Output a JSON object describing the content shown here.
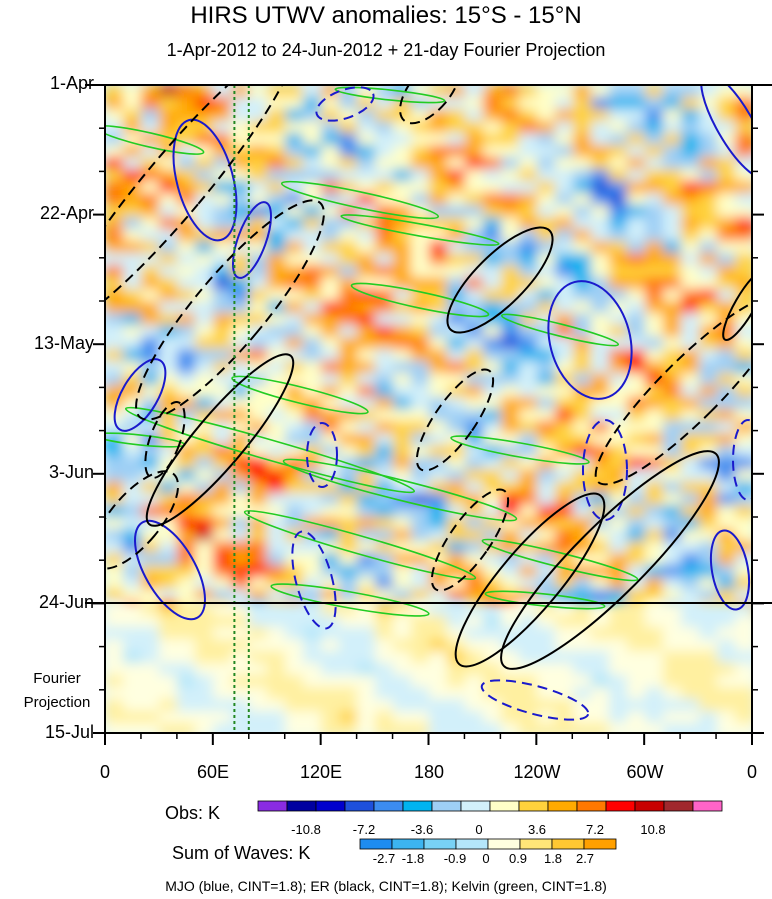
{
  "header": {
    "title": "HIRS UTWV anomalies: 15°S - 15°N",
    "subtitle": "1-Apr-2012 to 24-Jun-2012 + 21-day Fourier Projection"
  },
  "projection_label": [
    "Fourier",
    "Projection"
  ],
  "footer": "MJO (blue, CINT=1.8); ER (black, CINT=1.8); Kelvin (green, CINT=1.8)",
  "colors": {
    "mjo": "#1a1acc",
    "er": "#000000",
    "kelvin": "#22cc22",
    "reference_line": "#228822"
  },
  "chart_data": {
    "type": "heatmap",
    "title": "HIRS UTWV anomalies: 15°S - 15°N",
    "subtitle": "1-Apr-2012 to 24-Jun-2012 + 21-day Fourier Projection",
    "x_axis": {
      "tick_labels": [
        "0",
        "60E",
        "120E",
        "180",
        "120W",
        "60W",
        "0"
      ],
      "range_deg_east": [
        0,
        360
      ]
    },
    "y_axis": {
      "tick_labels": [
        "1-Apr",
        "22-Apr",
        "13-May",
        "3-Jun",
        "24-Jun",
        "15-Jul"
      ],
      "range": [
        "1-Apr-2012",
        "15-Jul-2012"
      ],
      "observation_end": "24-Jun",
      "projection_days": 21
    },
    "reference_longitudes_deg_east": [
      72,
      80
    ],
    "colorbars": [
      {
        "title": "Obs: K",
        "levels": [
          "-10.8",
          "-7.2",
          "-3.6",
          "0",
          "3.6",
          "7.2",
          "10.8"
        ],
        "colors": [
          "#8a2be2",
          "#0000a0",
          "#0000cd",
          "#1e50dc",
          "#3c8cf0",
          "#00b4f0",
          "#9ecff5",
          "#d2f0fa",
          "#ffffc8",
          "#ffd23c",
          "#ffaa00",
          "#ff7800",
          "#ff0000",
          "#c80000",
          "#a0282d",
          "#ff64c8"
        ]
      },
      {
        "title": "Sum of Waves: K",
        "levels": [
          "-2.7",
          "-1.8",
          "-0.9",
          "0",
          "0.9",
          "1.8",
          "2.7"
        ],
        "colors": [
          "#1e8cf0",
          "#3cb4f0",
          "#78d2f5",
          "#b4e6fa",
          "#ffffe0",
          "#ffe678",
          "#ffc832",
          "#ffa000"
        ]
      }
    ],
    "contour_legend": [
      {
        "name": "MJO",
        "color": "blue",
        "cint": 1.8
      },
      {
        "name": "ER",
        "color": "black",
        "cint": 1.8
      },
      {
        "name": "Kelvin",
        "color": "green",
        "cint": 1.8
      }
    ]
  }
}
